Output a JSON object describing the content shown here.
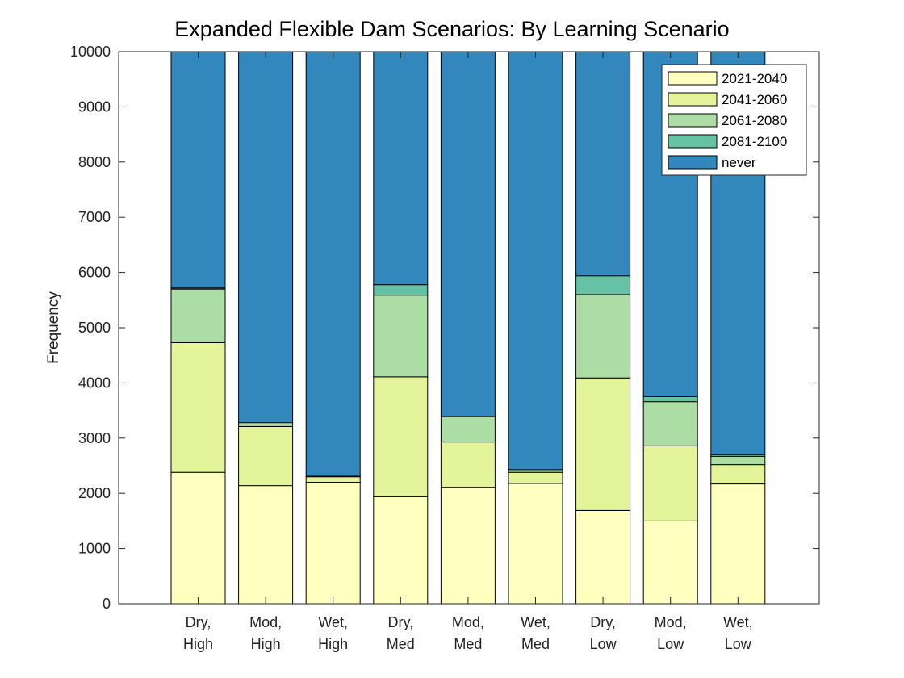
{
  "chart_data": {
    "type": "bar",
    "stacked": true,
    "title": "Expanded Flexible Dam Scenarios: By Learning Scenario",
    "xlabel": "",
    "ylabel": "Frequency",
    "ylim": [
      0,
      10000
    ],
    "yticks": [
      0,
      1000,
      2000,
      3000,
      4000,
      5000,
      6000,
      7000,
      8000,
      9000,
      10000
    ],
    "categories": [
      [
        "Dry,",
        "High"
      ],
      [
        "Mod,",
        "High"
      ],
      [
        "Wet,",
        "High"
      ],
      [
        "Dry,",
        "Med"
      ],
      [
        "Mod,",
        "Med"
      ],
      [
        "Wet,",
        "Med"
      ],
      [
        "Dry,",
        "Low"
      ],
      [
        "Mod,",
        "Low"
      ],
      [
        "Wet,",
        "Low"
      ]
    ],
    "series": [
      {
        "name": "2021-2040",
        "color": "#ffffbf",
        "values": [
          2380,
          2140,
          2200,
          1940,
          2110,
          2180,
          1690,
          1500,
          2170
        ]
      },
      {
        "name": "2041-2060",
        "color": "#e3f49b",
        "values": [
          2350,
          1070,
          100,
          2170,
          820,
          200,
          2400,
          1360,
          350
        ]
      },
      {
        "name": "2061-2080",
        "color": "#abdda4",
        "values": [
          970,
          70,
          10,
          1480,
          460,
          50,
          1510,
          800,
          150
        ]
      },
      {
        "name": "2081-2100",
        "color": "#66c2a5",
        "values": [
          20,
          0,
          0,
          190,
          0,
          0,
          340,
          90,
          30
        ]
      },
      {
        "name": "never",
        "color": "#3288bd",
        "values": [
          4280,
          6720,
          7690,
          4220,
          6610,
          7570,
          4060,
          6250,
          7300
        ]
      }
    ],
    "grid": false,
    "legend_position": "top-right"
  }
}
